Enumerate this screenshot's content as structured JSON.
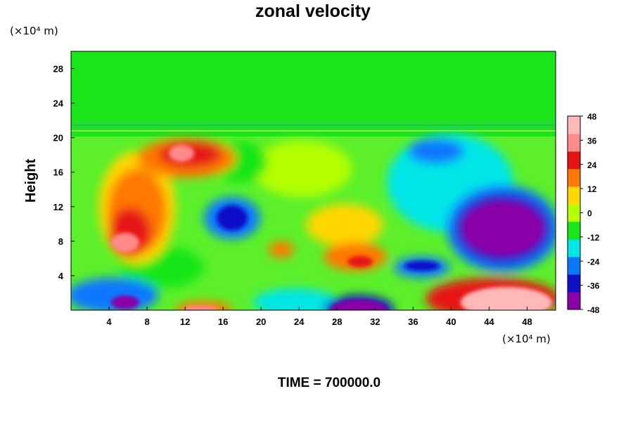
{
  "chart_data": {
    "type": "heatmap",
    "title": "zonal velocity",
    "xlabel": "",
    "ylabel": "Height",
    "x_unit": "(×10⁴ m)",
    "y_unit": "(×10⁴ m)",
    "xlim": [
      0,
      51
    ],
    "ylim": [
      0,
      30
    ],
    "x_ticks": [
      "4",
      "8",
      "12",
      "16",
      "20",
      "24",
      "28",
      "32",
      "36",
      "40",
      "44",
      "48"
    ],
    "y_ticks": [
      "4",
      "8",
      "12",
      "16",
      "20",
      "24",
      "28"
    ],
    "colorbar": {
      "min": -48,
      "max": 48,
      "ticks": [
        "48",
        "36",
        "24",
        "12",
        "0",
        "-12",
        "-24",
        "-36",
        "-48"
      ],
      "colors": [
        "#8a00a8",
        "#1010c8",
        "#0a78ff",
        "#00e6e6",
        "#19e619",
        "#b4ff00",
        "#ffd600",
        "#ff7800",
        "#e61414",
        "#ff8a8a",
        "#ffb8b8"
      ]
    },
    "features": [
      {
        "x": 0,
        "y": 25,
        "value": 0
      },
      {
        "x": 6,
        "y": 8,
        "value": 45
      },
      {
        "x": 7,
        "y": 10,
        "value": 36
      },
      {
        "x": 11,
        "y": 18,
        "value": 44
      },
      {
        "x": 14,
        "y": 17,
        "value": 30
      },
      {
        "x": 18,
        "y": 10,
        "value": -40
      },
      {
        "x": 23,
        "y": 7,
        "value": 22
      },
      {
        "x": 25,
        "y": 11,
        "value": 18
      },
      {
        "x": 30,
        "y": 6,
        "value": 36
      },
      {
        "x": 31,
        "y": 1,
        "value": -48
      },
      {
        "x": 37,
        "y": 12,
        "value": -10
      },
      {
        "x": 37,
        "y": 18,
        "value": -38
      },
      {
        "x": 46,
        "y": 10,
        "value": -48
      },
      {
        "x": 46,
        "y": 1,
        "value": 48
      },
      {
        "x": 6,
        "y": 1,
        "value": -48
      },
      {
        "x": 13,
        "y": 0,
        "value": 40
      },
      {
        "x": 42,
        "y": 2,
        "value": 36
      }
    ]
  },
  "footer": {
    "time_label": "TIME = 700000.0"
  }
}
